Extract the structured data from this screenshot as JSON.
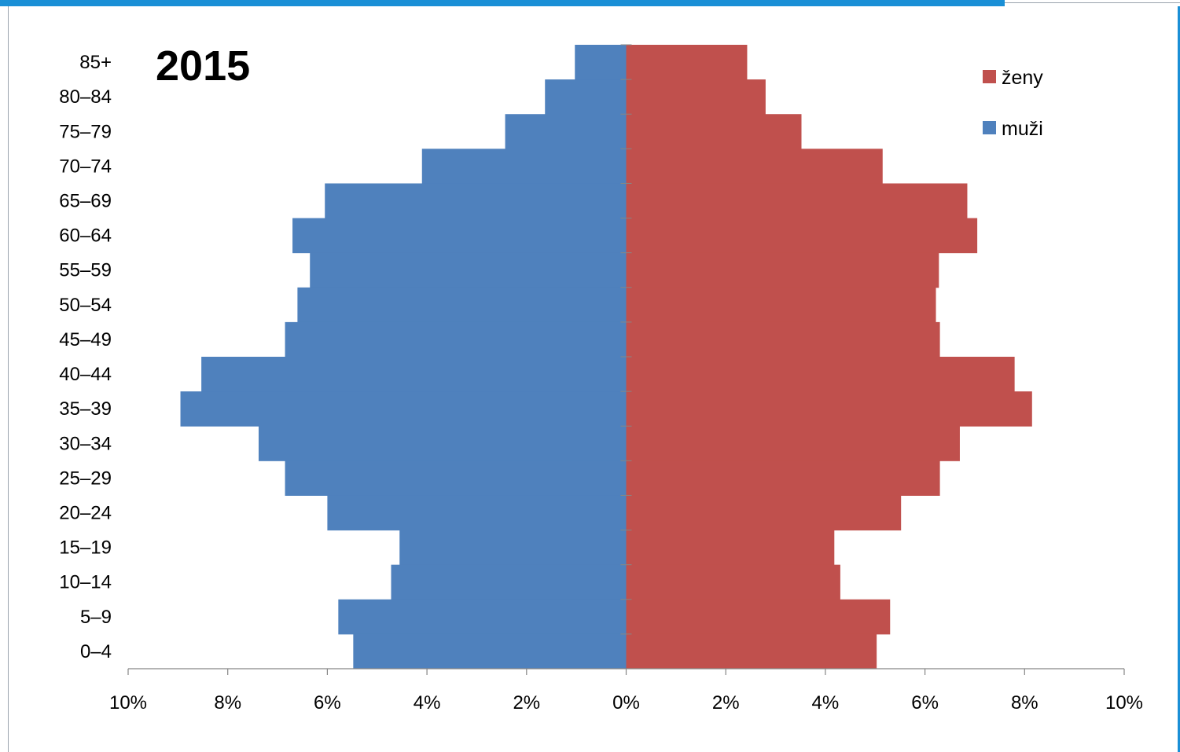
{
  "chart_data": {
    "type": "bar",
    "orientation": "horizontal",
    "title": "2015",
    "categories": [
      "85+",
      "80–84",
      "75–79",
      "70–74",
      "65–69",
      "60–64",
      "55–59",
      "50–54",
      "45–49",
      "40–44",
      "35–39",
      "30–34",
      "25–29",
      "20–24",
      "15–19",
      "10–14",
      "5–9",
      "0–4"
    ],
    "series": [
      {
        "name": "ženy",
        "color": "#c0504d",
        "values": [
          2.43,
          2.8,
          3.52,
          5.15,
          6.85,
          7.05,
          6.28,
          6.22,
          6.3,
          7.8,
          8.15,
          6.7,
          6.3,
          5.52,
          4.18,
          4.3,
          5.3,
          5.03
        ]
      },
      {
        "name": "muži",
        "color": "#4f81bd",
        "values": [
          1.03,
          1.63,
          2.43,
          4.1,
          6.05,
          6.7,
          6.35,
          6.6,
          6.85,
          8.53,
          8.95,
          7.38,
          6.85,
          6.0,
          4.55,
          4.72,
          5.78,
          5.48
        ]
      }
    ],
    "xlim": [
      -10,
      10
    ],
    "xticks": [
      "10%",
      "8%",
      "6%",
      "4%",
      "2%",
      "0%",
      "2%",
      "4%",
      "6%",
      "8%",
      "10%"
    ],
    "grid": false,
    "legend": "top-right"
  }
}
